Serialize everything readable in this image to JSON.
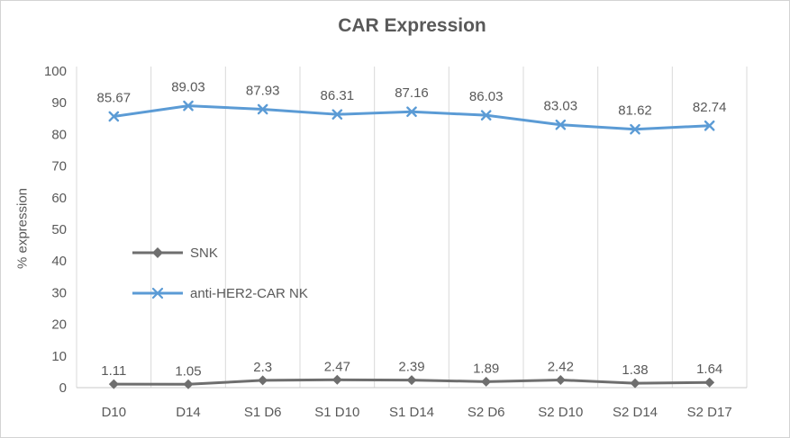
{
  "chart_data": {
    "type": "line",
    "title": "CAR Expression",
    "xlabel": "",
    "ylabel": "% expression",
    "ylim": [
      0,
      100
    ],
    "yticks": [
      0,
      10,
      20,
      30,
      40,
      50,
      60,
      70,
      80,
      90,
      100
    ],
    "grid": "vertical-only",
    "legend_position": "inside-left",
    "categories": [
      "D10",
      "D14",
      "S1 D6",
      "S1 D10",
      "S1 D14",
      "S2 D6",
      "S2 D10",
      "S2 D14",
      "S2 D17"
    ],
    "series": [
      {
        "id": "snk",
        "name": "SNK",
        "color": "#6E6E6E",
        "marker": "diamond",
        "values": [
          1.11,
          1.05,
          2.3,
          2.47,
          2.39,
          1.89,
          2.42,
          1.38,
          1.64
        ],
        "labels": [
          "1.11",
          "1.05",
          "2.3",
          "2.47",
          "2.39",
          "1.89",
          "2.42",
          "1.38",
          "1.64"
        ]
      },
      {
        "id": "anti-her2-car-nk",
        "name": "anti-HER2-CAR NK",
        "color": "#5B9BD5",
        "marker": "x",
        "values": [
          85.67,
          89.03,
          87.93,
          86.31,
          87.16,
          86.03,
          83.03,
          81.62,
          82.74
        ],
        "labels": [
          "85.67",
          "89.03",
          "87.93",
          "86.31",
          "87.16",
          "86.03",
          "83.03",
          "81.62",
          "82.74"
        ]
      }
    ],
    "colors": {
      "text": "#595959",
      "gridline": "#D9D9D9",
      "axis": "#C9C9C9",
      "frame": "#D3D3D3"
    }
  }
}
